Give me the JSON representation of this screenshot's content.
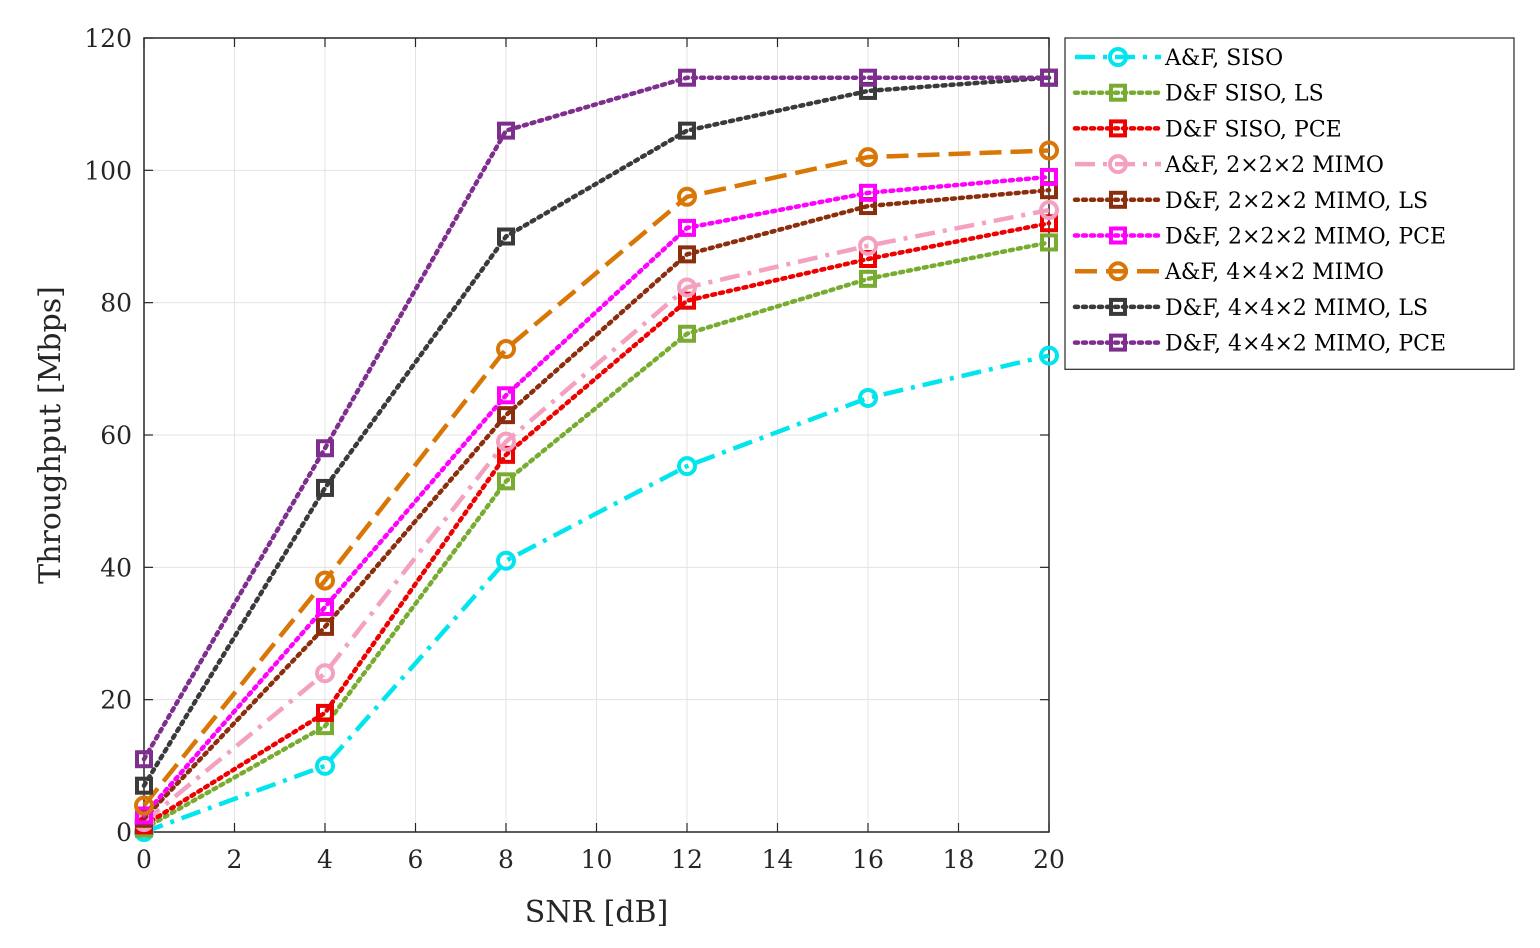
{
  "chart_data": {
    "type": "line",
    "title": "",
    "xlabel": "SNR [dB]",
    "ylabel": "Throughput [Mbps]",
    "xlim": [
      0,
      20
    ],
    "ylim": [
      0,
      120
    ],
    "xticks": [
      "0",
      "2",
      "4",
      "6",
      "8",
      "10",
      "12",
      "14",
      "16",
      "18",
      "20"
    ],
    "yticks": [
      "0",
      "20",
      "40",
      "60",
      "80",
      "100",
      "120"
    ],
    "grid": true,
    "legend_position": "outside-top-right",
    "x": [
      0,
      4,
      8,
      12,
      16,
      20
    ],
    "series": [
      {
        "name": "A&F, SISO",
        "color": "#00e5ee",
        "dash": "dashdot",
        "marker": "circle",
        "values": [
          0,
          10,
          41,
          55.3,
          65.6,
          72
        ]
      },
      {
        "name": "D&F SISO, LS",
        "color": "#77ac30",
        "dash": "dotted",
        "marker": "square",
        "values": [
          0.5,
          16,
          53,
          75.3,
          83.6,
          89.1
        ]
      },
      {
        "name": "D&F SISO, PCE",
        "color": "#ee0000",
        "dash": "dotted",
        "marker": "square",
        "values": [
          1,
          18,
          57,
          80.3,
          86.6,
          92
        ]
      },
      {
        "name": "A&F, 2×2×2 MIMO",
        "color": "#f4a0c0",
        "dash": "dashdot",
        "marker": "circle",
        "values": [
          1.5,
          24,
          59,
          82.3,
          88.6,
          94
        ]
      },
      {
        "name": "D&F, 2×2×2 MIMO, LS",
        "color": "#8b2e0e",
        "dash": "dotted",
        "marker": "square",
        "values": [
          2,
          31,
          63,
          87.3,
          94.6,
          97
        ]
      },
      {
        "name": "D&F, 2×2×2 MIMO, PCE",
        "color": "#ff00ff",
        "dash": "dotted",
        "marker": "square",
        "values": [
          2.5,
          34,
          66,
          91.3,
          96.6,
          99
        ]
      },
      {
        "name": "A&F, 4×4×2 MIMO",
        "color": "#d97706",
        "dash": "dashed",
        "marker": "circle",
        "values": [
          4,
          38,
          73,
          96,
          102,
          103
        ]
      },
      {
        "name": "D&F, 4×4×2 MIMO, LS",
        "color": "#3a3a3a",
        "dash": "dotted",
        "marker": "square",
        "values": [
          7,
          52,
          90,
          106,
          112,
          114
        ]
      },
      {
        "name": "D&F, 4×4×2 MIMO, PCE",
        "color": "#7e2f8e",
        "dash": "dotted",
        "marker": "square",
        "values": [
          11,
          58,
          106,
          114,
          114,
          114
        ]
      }
    ]
  }
}
